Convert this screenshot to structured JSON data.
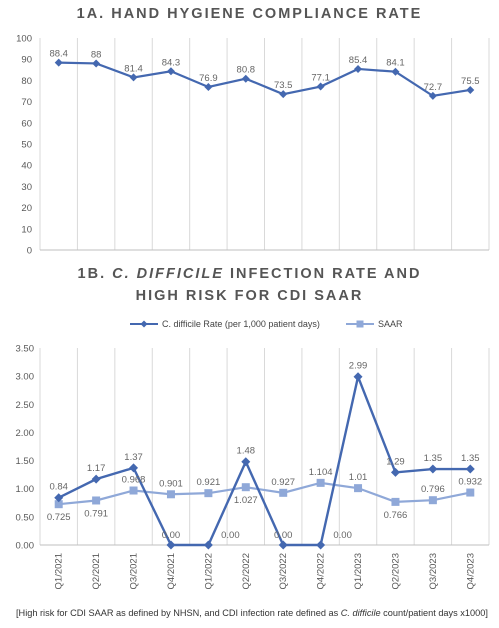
{
  "titles": {
    "chart1": "1A. HAND HYGIENE COMPLIANCE RATE",
    "chart2_line1_pre": "1B. ",
    "chart2_line1_em": "C. DIFFICILE",
    "chart2_line1_post": " INFECTION RATE AND",
    "chart2_line2": "HIGH RISK FOR CDI SAAR"
  },
  "footnote": {
    "pre": "[High risk for CDI SAAR as defined by NHSN, and CDI infection rate defined as ",
    "em": "C. difficile",
    "post": " count/patient days x1000]"
  },
  "colors": {
    "series_dark": "#4468b0",
    "series_light": "#8fa8d8",
    "grid": "#d9d9d9"
  },
  "chart_data": [
    {
      "type": "line",
      "title": "1A. HAND HYGIENE COMPLIANCE RATE",
      "x": [
        "1",
        "2",
        "3",
        "4",
        "5",
        "6",
        "7",
        "8",
        "9",
        "10",
        "11",
        "12"
      ],
      "series": [
        {
          "values": [
            88.4,
            88,
            81.4,
            84.3,
            76.9,
            80.8,
            73.5,
            77.1,
            85.4,
            84.1,
            72.7,
            75.5
          ],
          "labels": [
            "88.4",
            "88",
            "81.4",
            "84.3",
            "76.9",
            "80.8",
            "73.5",
            "77.1",
            "85.4",
            "84.1",
            "72.7",
            "75.5"
          ]
        }
      ],
      "ylim": [
        0,
        100
      ],
      "yticks": [
        "0",
        "10",
        "20",
        "30",
        "40",
        "50",
        "60",
        "70",
        "80",
        "90",
        "100"
      ],
      "grid": "vertical"
    },
    {
      "type": "line",
      "title": "1B. C. DIFFICILE INFECTION RATE AND HIGH RISK FOR CDI SAAR",
      "categories": [
        "Q1/2021",
        "Q2/2021",
        "Q3/2021",
        "Q4/2021",
        "Q1/2022",
        "Q2/2022",
        "Q3/2022",
        "Q4/2022",
        "Q1/2023",
        "Q2/2023",
        "Q3/2023",
        "Q4/2023"
      ],
      "series": [
        {
          "name": "C. difficile Rate (per 1,000 patient days)",
          "values": [
            0.84,
            1.17,
            1.37,
            0.0,
            0.0,
            1.48,
            0.0,
            0.0,
            2.99,
            1.29,
            1.35,
            1.35
          ],
          "labels": [
            "0.84",
            "1.17",
            "1.37",
            "0.00",
            "0.00",
            "1.48",
            "0.00",
            "0.00",
            "2.99",
            "1.29",
            "1.35",
            "1.35"
          ]
        },
        {
          "name": "SAAR",
          "values": [
            0.725,
            0.791,
            0.968,
            0.901,
            0.921,
            1.027,
            0.927,
            1.104,
            1.01,
            0.766,
            0.796,
            0.932
          ],
          "labels": [
            "0.725",
            "0.791",
            "0.968",
            "0.901",
            "0.921",
            "1.027",
            "0.927",
            "1.104",
            "1.01",
            "0.766",
            "0.796",
            "0.932"
          ]
        }
      ],
      "ylim": [
        0,
        3.5
      ],
      "yticks": [
        "0.00",
        "0.50",
        "1.00",
        "1.50",
        "2.00",
        "2.50",
        "3.00",
        "3.50"
      ],
      "legend": "top",
      "grid": "vertical"
    }
  ]
}
